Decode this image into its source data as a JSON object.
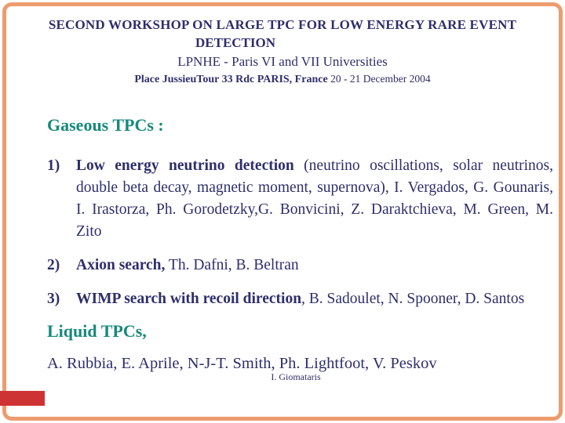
{
  "slide": {
    "header": {
      "title_line1": "SECOND WORKSHOP ON LARGE TPC FOR LOW ENERGY RARE EVENT",
      "title_line2": "DETECTION",
      "institution": "LPNHE - Paris VI and VII Universities",
      "venue": "Place JussieuTour 33 Rdc PARIS, France",
      "dates": "20 - 21 December 2004"
    },
    "sections": {
      "gaseous_heading": "Gaseous TPCs :",
      "liquid_heading": "Liquid TPCs,"
    },
    "items": [
      {
        "num": "1)",
        "bold": "Low energy neutrino detection",
        "rest": " (neutrino oscillations, solar neutrinos, double beta decay, magnetic moment, supernova),  I. Vergados, G. Gounaris, I. Irastorza, Ph. Gorodetzky,G. Bonvicini, Z. Daraktchieva, M. Green, M. Zito"
      },
      {
        "num": "2)",
        "bold": "Axion search,",
        "rest": " Th. Dafni, B. Beltran"
      },
      {
        "num": "3)",
        "bold": "WIMP search with recoil direction",
        "rest": ", B. Sadoulet, N. Spooner, D. Santos"
      }
    ],
    "liquid_authors": "A. Rubbia, E. Aprile, N-J-T. Smith, Ph. Lightfoot, V. Peskov",
    "credit": "I. Giomataris",
    "colors": {
      "navy": "#2e2e6b",
      "teal": "#16897b",
      "border_orange": "#ed9c6e",
      "red_marker": "#ce3333",
      "background": "#ffffff"
    }
  }
}
